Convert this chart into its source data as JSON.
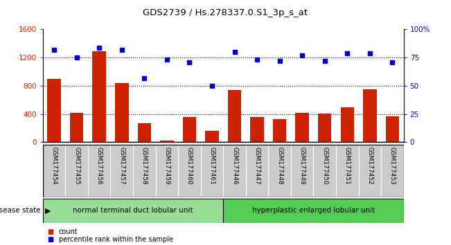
{
  "title": "GDS2739 / Hs.278337.0.S1_3p_s_at",
  "categories": [
    "GSM177454",
    "GSM177455",
    "GSM177456",
    "GSM177457",
    "GSM177458",
    "GSM177459",
    "GSM177460",
    "GSM177461",
    "GSM177446",
    "GSM177447",
    "GSM177448",
    "GSM177449",
    "GSM177450",
    "GSM177451",
    "GSM177452",
    "GSM177453"
  ],
  "counts": [
    900,
    420,
    1290,
    840,
    270,
    20,
    360,
    160,
    740,
    360,
    330,
    420,
    410,
    490,
    750,
    370
  ],
  "percentiles": [
    82,
    75,
    84,
    82,
    57,
    73,
    71,
    50,
    80,
    73,
    72,
    77,
    72,
    79,
    79,
    71
  ],
  "group1_label": "normal terminal duct lobular unit",
  "group2_label": "hyperplastic enlarged lobular unit",
  "group1_count": 8,
  "group2_count": 8,
  "bar_color": "#cc2200",
  "dot_color": "#0000cc",
  "ylim_left": [
    0,
    1600
  ],
  "ylim_right": [
    0,
    100
  ],
  "yticks_left": [
    0,
    400,
    800,
    1200,
    1600
  ],
  "yticks_right": [
    0,
    25,
    50,
    75,
    100
  ],
  "yticklabels_right": [
    "0",
    "25",
    "50",
    "75",
    "100%"
  ],
  "grid_values": [
    400,
    800,
    1200
  ],
  "legend_count_label": "count",
  "legend_pct_label": "percentile rank within the sample",
  "disease_state_label": "disease state",
  "group1_color": "#99dd99",
  "group2_color": "#55cc55",
  "tick_bg_color": "#cccccc",
  "fig_bg": "#ffffff"
}
